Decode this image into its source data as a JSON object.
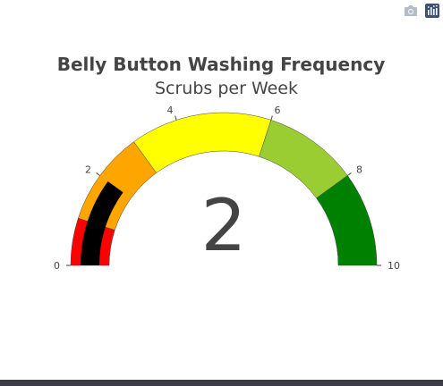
{
  "modebar": {
    "buttons": [
      {
        "icon": "camera-icon"
      },
      {
        "icon": "plotly-logo-icon"
      }
    ]
  },
  "chart_data": {
    "type": "gauge",
    "title": "Belly Button Washing Frequency",
    "subtitle": "Scrubs per Week",
    "value": 2,
    "value_label": "2",
    "range": [
      0,
      10
    ],
    "ticks": [
      {
        "value": 0,
        "label": "0"
      },
      {
        "value": 2,
        "label": "2"
      },
      {
        "value": 4,
        "label": "4"
      },
      {
        "value": 6,
        "label": "6"
      },
      {
        "value": 8,
        "label": "8"
      },
      {
        "value": 10,
        "label": "10"
      }
    ],
    "steps": [
      {
        "range": [
          0,
          1
        ],
        "color": "#ff0000"
      },
      {
        "range": [
          1,
          3
        ],
        "color": "#ffa500"
      },
      {
        "range": [
          3,
          6
        ],
        "color": "#ffff00"
      },
      {
        "range": [
          6,
          8
        ],
        "color": "#9acd32"
      },
      {
        "range": [
          8,
          10
        ],
        "color": "#008000"
      }
    ],
    "bar_color": "#000000"
  }
}
